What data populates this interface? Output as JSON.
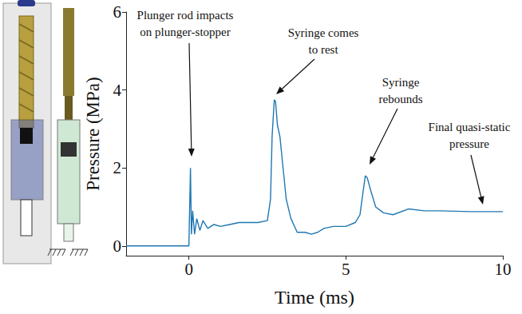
{
  "chart_data": {
    "type": "line",
    "x_label": "Time (ms)",
    "y_label": "Pressure (MPa)",
    "xlim": [
      -2,
      10
    ],
    "xticks": [
      0,
      5,
      10
    ],
    "ylim": [
      -0.25,
      6
    ],
    "yticks": [
      0,
      2,
      4,
      6
    ],
    "grid": false,
    "series": [
      {
        "color": "#1f77b4",
        "x": [
          -2,
          -0.5,
          0.0,
          0.05,
          0.08,
          0.12,
          0.18,
          0.25,
          0.35,
          0.45,
          0.6,
          0.8,
          1.0,
          1.3,
          1.6,
          1.9,
          2.2,
          2.5,
          2.6,
          2.65,
          2.72,
          2.76,
          2.82,
          2.9,
          3.0,
          3.1,
          3.25,
          3.45,
          3.7,
          3.9,
          4.1,
          4.3,
          4.6,
          5.0,
          5.3,
          5.45,
          5.55,
          5.62,
          5.68,
          5.8,
          5.95,
          6.2,
          6.5,
          7.0,
          7.5,
          8.0,
          9.0,
          10.0
        ],
        "values": [
          0,
          0,
          0,
          2.0,
          0.3,
          0.9,
          0.3,
          0.7,
          0.4,
          0.65,
          0.45,
          0.55,
          0.5,
          0.55,
          0.6,
          0.6,
          0.6,
          0.65,
          1.2,
          2.8,
          3.75,
          3.7,
          3.1,
          2.8,
          2.0,
          1.2,
          0.7,
          0.35,
          0.35,
          0.3,
          0.35,
          0.45,
          0.5,
          0.5,
          0.6,
          0.8,
          1.4,
          1.8,
          1.75,
          1.4,
          1.0,
          0.85,
          0.8,
          0.95,
          0.9,
          0.9,
          0.88,
          0.88
        ]
      }
    ],
    "annotations": [
      "Plunger rod impacts\non plunger-stopper",
      "Syringe comes\nto rest",
      "Syringe\nrebounds",
      "Final quasi-static\npressure"
    ]
  }
}
